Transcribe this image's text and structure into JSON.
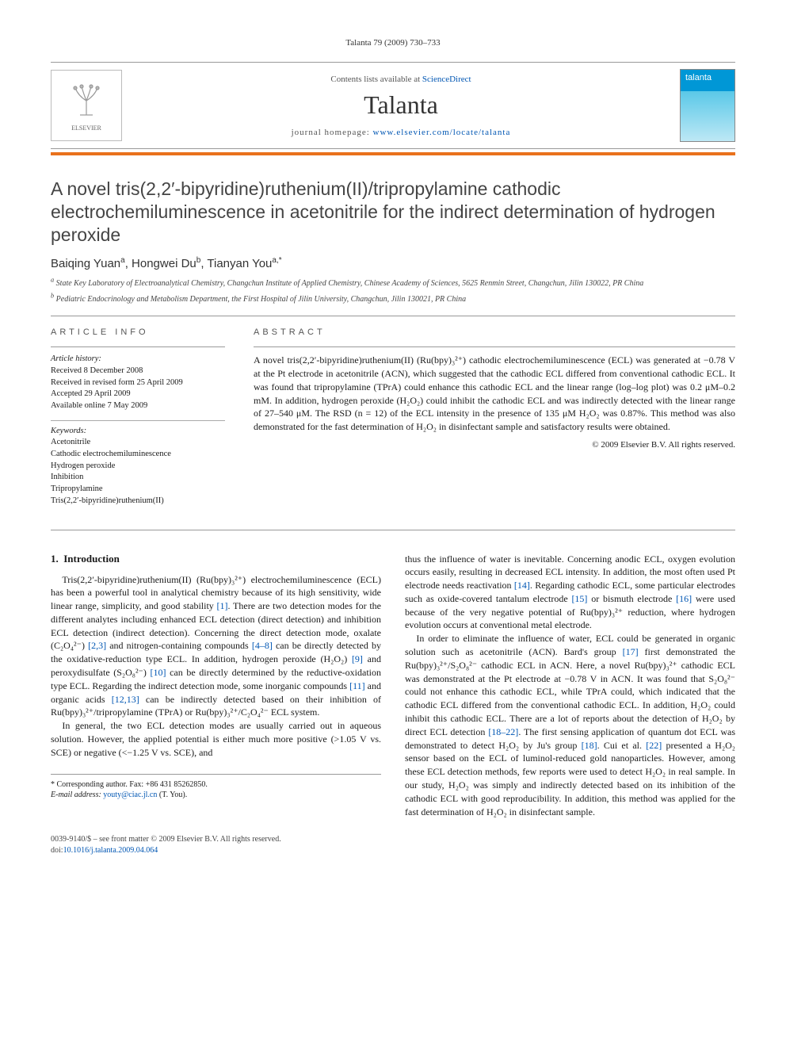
{
  "running_head": "Talanta 79 (2009) 730–733",
  "masthead": {
    "contents_prefix": "Contents lists available at ",
    "contents_link": "ScienceDirect",
    "journal": "Talanta",
    "homepage_prefix": "journal homepage: ",
    "homepage_link": "www.elsevier.com/locate/talanta",
    "publisher_label": "ELSEVIER",
    "cover_label": "talanta"
  },
  "title": "A novel tris(2,2′-bipyridine)ruthenium(II)/tripropylamine cathodic electrochemiluminescence in acetonitrile for the indirect determination of hydrogen peroxide",
  "authors_html": "Baiqing Yuan<sup>a</sup>, Hongwei Du<sup>b</sup>, Tianyan You<sup>a,*</sup>",
  "affiliations": [
    "a State Key Laboratory of Electroanalytical Chemistry, Changchun Institute of Applied Chemistry, Chinese Academy of Sciences, 5625 Renmin Street, Changchun, Jilin 130022, PR China",
    "b Pediatric Endocrinology and Metabolism Department, the First Hospital of Jilin University, Changchun, Jilin 130021, PR China"
  ],
  "info": {
    "label": "ARTICLE INFO",
    "history_hd": "Article history:",
    "history": [
      "Received 8 December 2008",
      "Received in revised form 25 April 2009",
      "Accepted 29 April 2009",
      "Available online 7 May 2009"
    ],
    "keywords_hd": "Keywords:",
    "keywords": [
      "Acetonitrile",
      "Cathodic electrochemiluminescence",
      "Hydrogen peroxide",
      "Inhibition",
      "Tripropylamine",
      "Tris(2,2′-bipyridine)ruthenium(II)"
    ]
  },
  "abstract": {
    "label": "ABSTRACT",
    "text": "A novel tris(2,2′-bipyridine)ruthenium(II) (Ru(bpy)₃²⁺) cathodic electrochemiluminescence (ECL) was generated at −0.78 V at the Pt electrode in acetonitrile (ACN), which suggested that the cathodic ECL differed from conventional cathodic ECL. It was found that tripropylamine (TPrA) could enhance this cathodic ECL and the linear range (log–log plot) was 0.2 μM–0.2 mM. In addition, hydrogen peroxide (H₂O₂) could inhibit the cathodic ECL and was indirectly detected with the linear range of 27–540 μM. The RSD (n = 12) of the ECL intensity in the presence of 135 μM H₂O₂ was 0.87%. This method was also demonstrated for the fast determination of H₂O₂ in disinfectant sample and satisfactory results were obtained.",
    "copyright": "© 2009 Elsevier B.V. All rights reserved."
  },
  "body": {
    "section_num": "1.",
    "section_title": "Introduction",
    "p1": "Tris(2,2′-bipyridine)ruthenium(II) (Ru(bpy)₃²⁺) electrochemiluminescence (ECL) has been a powerful tool in analytical chemistry because of its high sensitivity, wide linear range, simplicity, and good stability [1]. There are two detection modes for the different analytes including enhanced ECL detection (direct detection) and inhibition ECL detection (indirect detection). Concerning the direct detection mode, oxalate (C₂O₄²⁻) [2,3] and nitrogen-containing compounds [4–8] can be directly detected by the oxidative-reduction type ECL. In addition, hydrogen peroxide (H₂O₂) [9] and peroxydisulfate (S₂O₈²⁻) [10] can be directly determined by the reductive-oxidation type ECL. Regarding the indirect detection mode, some inorganic compounds [11] and organic acids [12,13] can be indirectly detected based on their inhibition of Ru(bpy)₃²⁺/tripropylamine (TPrA) or Ru(bpy)₃²⁺/C₂O₄²⁻ ECL system.",
    "p2": "In general, the two ECL detection modes are usually carried out in aqueous solution. However, the applied potential is either much more positive (>1.05 V vs. SCE) or negative (<−1.25 V vs. SCE), and",
    "p3": "thus the influence of water is inevitable. Concerning anodic ECL, oxygen evolution occurs easily, resulting in decreased ECL intensity. In addition, the most often used Pt electrode needs reactivation [14]. Regarding cathodic ECL, some particular electrodes such as oxide-covered tantalum electrode [15] or bismuth electrode [16] were used because of the very negative potential of Ru(bpy)₃²⁺ reduction, where hydrogen evolution occurs at conventional metal electrode.",
    "p4": "In order to eliminate the influence of water, ECL could be generated in organic solution such as acetonitrile (ACN). Bard's group [17] first demonstrated the Ru(bpy)₃²⁺/S₂O₈²⁻ cathodic ECL in ACN. Here, a novel Ru(bpy)₃²⁺ cathodic ECL was demonstrated at the Pt electrode at −0.78 V in ACN. It was found that S₂O₈²⁻ could not enhance this cathodic ECL, while TPrA could, which indicated that the cathodic ECL differed from the conventional cathodic ECL. In addition, H₂O₂ could inhibit this cathodic ECL. There are a lot of reports about the detection of H₂O₂ by direct ECL detection [18–22]. The first sensing application of quantum dot ECL was demonstrated to detect H₂O₂ by Ju's group [18]. Cui et al. [22] presented a H₂O₂ sensor based on the ECL of luminol-reduced gold nanoparticles. However, among these ECL detection methods, few reports were used to detect H₂O₂ in real sample. In our study, H₂O₂ was simply and indirectly detected based on its inhibition of the cathodic ECL with good reproducibility. In addition, this method was applied for the fast determination of H₂O₂ in disinfectant sample."
  },
  "footnote": {
    "corr": "* Corresponding author. Fax: +86 431 85262850.",
    "email_label": "E-mail address: ",
    "email": "youty@ciac.jl.cn",
    "email_suffix": " (T. You)."
  },
  "footer": {
    "line1": "0039-9140/$ – see front matter © 2009 Elsevier B.V. All rights reserved.",
    "doi_label": "doi:",
    "doi": "10.1016/j.talanta.2009.04.064"
  },
  "colors": {
    "link": "#0056b3",
    "orange_bar": "#e9711c",
    "cover_top": "#0097d6",
    "rule": "#999999"
  }
}
